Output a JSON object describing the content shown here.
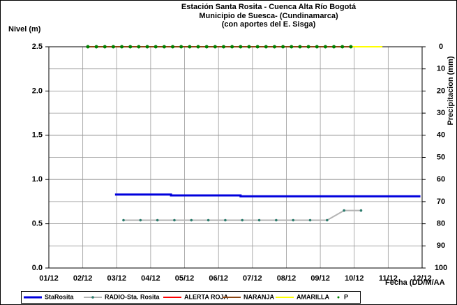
{
  "chart_data": {
    "type": "line",
    "title": [
      "Estación Santa Rosita - Cuenca Alta Río Bogotá",
      "Municipio de Suesca- (Cundinamarca)",
      "(con aportes del  E. Sisga)"
    ],
    "y_label": "Nivel (m)",
    "y2_label": "Precipitacion (mm)",
    "x_label": "Fecha (DD/M/AA",
    "xlim": [
      0,
      11
    ],
    "xticks": [
      {
        "value": 0,
        "label": "01/12"
      },
      {
        "value": 1,
        "label": "02/12"
      },
      {
        "value": 2,
        "label": "03/12"
      },
      {
        "value": 3,
        "label": "04/12"
      },
      {
        "value": 4,
        "label": "05/12"
      },
      {
        "value": 5,
        "label": "06/12"
      },
      {
        "value": 6,
        "label": "07/12"
      },
      {
        "value": 7,
        "label": "08/12"
      },
      {
        "value": 8,
        "label": "09/12"
      },
      {
        "value": 9,
        "label": "10/12"
      },
      {
        "value": 10,
        "label": "11/12"
      },
      {
        "value": 11,
        "label": "12/12"
      }
    ],
    "ylim": [
      0,
      2.5
    ],
    "yticks": [
      {
        "value": 0,
        "label": "0.0"
      },
      0.5,
      {
        "value": 1,
        "label": "1.0"
      },
      1.5,
      {
        "value": 2,
        "label": "2.0"
      },
      2.5
    ],
    "y2lim": [
      100,
      0
    ],
    "y2_inverted": true,
    "y2ticks": [
      0,
      10,
      20,
      30,
      40,
      50,
      60,
      70,
      80,
      90,
      100
    ],
    "grid": true,
    "series": [
      {
        "name": "StaRosita",
        "color": "#0000dd",
        "width": 3,
        "x": [
          1.95,
          3.6,
          3.6,
          5.65,
          5.65,
          10.95
        ],
        "values": [
          0.83,
          0.83,
          0.82,
          0.82,
          0.81,
          0.81
        ]
      },
      {
        "name": "RADIO-Sta. Rosita",
        "color": "#b4b4b4",
        "width": 2,
        "markers": true,
        "marker_color": "#2e7d6e",
        "x": [
          2.2,
          2.7,
          3.2,
          3.7,
          4.2,
          4.7,
          5.2,
          5.7,
          6.2,
          6.7,
          7.2,
          7.7,
          8.2,
          8.7,
          9.2
        ],
        "values": [
          0.54,
          0.54,
          0.54,
          0.54,
          0.54,
          0.54,
          0.54,
          0.54,
          0.54,
          0.54,
          0.54,
          0.54,
          0.54,
          0.65,
          0.65
        ]
      },
      {
        "name": "ALERTA ROJA",
        "color": "#ff0000",
        "width": 2,
        "x": [
          1.13,
          8.95
        ],
        "values": [
          2.5,
          2.5
        ]
      },
      {
        "name": "NARANJA",
        "color": "#8b4513",
        "width": 2,
        "x": [
          1.13,
          8.95
        ],
        "values": [
          2.5,
          2.5
        ]
      },
      {
        "name": "AMARILLA",
        "color": "#ffff00",
        "width": 2,
        "x": [
          8.95,
          9.83
        ],
        "values": [
          2.5,
          2.5
        ]
      },
      {
        "name": "P",
        "color": "#008000",
        "axis": "y2",
        "points": true,
        "x": [
          1.15,
          1.4,
          1.65,
          1.9,
          2.15,
          2.4,
          2.65,
          2.9,
          3.15,
          3.4,
          3.65,
          3.9,
          4.15,
          4.4,
          4.65,
          4.9,
          5.15,
          5.4,
          5.65,
          5.9,
          6.15,
          6.4,
          6.65,
          6.9,
          7.15,
          7.4,
          7.65,
          7.9,
          8.15,
          8.4,
          8.65,
          8.9
        ],
        "values": [
          0,
          0,
          0,
          0,
          0,
          0,
          0,
          0,
          0,
          0,
          0,
          0,
          0,
          0,
          0,
          0,
          0,
          0,
          0,
          0,
          0,
          0,
          0,
          0,
          0,
          0,
          0,
          0,
          0,
          0,
          0,
          0
        ]
      }
    ]
  }
}
